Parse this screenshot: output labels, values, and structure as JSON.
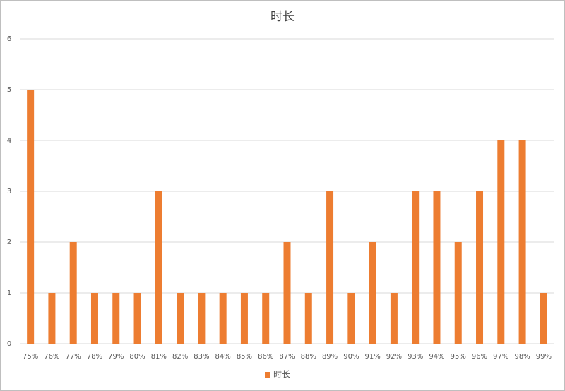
{
  "chart_data": {
    "type": "bar",
    "title": "时长",
    "categories": [
      "75%",
      "76%",
      "77%",
      "78%",
      "79%",
      "80%",
      "81%",
      "82%",
      "83%",
      "84%",
      "85%",
      "86%",
      "87%",
      "88%",
      "89%",
      "90%",
      "91%",
      "92%",
      "93%",
      "94%",
      "95%",
      "96%",
      "97%",
      "98%",
      "99%"
    ],
    "series": [
      {
        "name": "时长",
        "color": "#ed7d31",
        "values": [
          5,
          1,
          2,
          1,
          1,
          1,
          3,
          1,
          1,
          1,
          1,
          1,
          2,
          1,
          3,
          1,
          2,
          1,
          3,
          3,
          2,
          3,
          4,
          4,
          1
        ]
      }
    ],
    "ylim": [
      0,
      6
    ],
    "yticks": [
      0,
      1,
      2,
      3,
      4,
      5,
      6
    ],
    "grid": true,
    "legend": "bottom"
  }
}
